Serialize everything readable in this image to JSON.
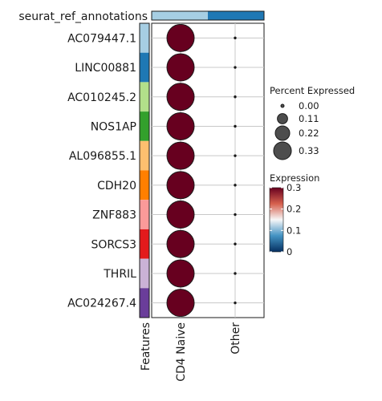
{
  "chart_data": {
    "type": "dot",
    "annotation_label": "seurat_ref_annotations",
    "features_axis_label": "Features",
    "genes": [
      "AC079447.1",
      "LINC00881",
      "AC010245.2",
      "NOS1AP",
      "AL096855.1",
      "CDH20",
      "ZNF883",
      "SORCS3",
      "THRIL",
      "AC024267.4"
    ],
    "groups": [
      "CD4 Naive",
      "Other"
    ],
    "percent_expressed": [
      [
        0.33,
        0.0
      ],
      [
        0.33,
        0.0
      ],
      [
        0.33,
        0.0
      ],
      [
        0.33,
        0.0
      ],
      [
        0.33,
        0.0
      ],
      [
        0.33,
        0.0
      ],
      [
        0.33,
        0.0
      ],
      [
        0.33,
        0.0
      ],
      [
        0.33,
        0.0
      ],
      [
        0.33,
        0.0
      ]
    ],
    "expression": [
      [
        0.3,
        0.0
      ],
      [
        0.3,
        0.0
      ],
      [
        0.3,
        0.0
      ],
      [
        0.3,
        0.0
      ],
      [
        0.3,
        0.0
      ],
      [
        0.3,
        0.0
      ],
      [
        0.3,
        0.0
      ],
      [
        0.3,
        0.0
      ],
      [
        0.3,
        0.0
      ],
      [
        0.3,
        0.0
      ]
    ],
    "row_colors": [
      "#a6cee3",
      "#1f78b4",
      "#b2df8a",
      "#33a02c",
      "#fdbf6f",
      "#ff7f00",
      "#fb9a99",
      "#e31a1c",
      "#cab2d6",
      "#6a3d9a"
    ],
    "group_colors": [
      "#a6cee3",
      "#1f78b4"
    ],
    "size_legend": {
      "title": "Percent Expressed",
      "values": [
        0.0,
        0.11,
        0.22,
        0.33
      ],
      "labels": [
        "0.00",
        "0.11",
        "0.22",
        "0.33"
      ]
    },
    "color_legend": {
      "title": "Expression",
      "range": [
        0,
        0.3
      ],
      "ticks": [
        0,
        0.1,
        0.2,
        0.3
      ],
      "tick_labels": [
        "0",
        "0.1",
        "0.2",
        "0.3"
      ],
      "colors": [
        "#053061",
        "#4393c3",
        "#f7f7f7",
        "#d6604d",
        "#67001f"
      ]
    },
    "grid": true
  }
}
